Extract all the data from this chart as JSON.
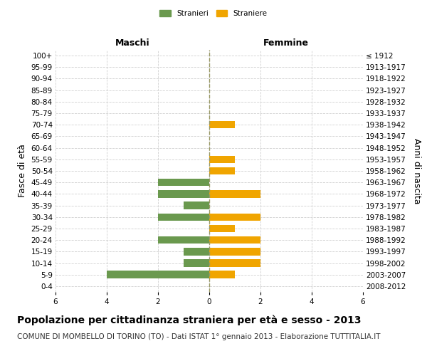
{
  "age_groups": [
    "0-4",
    "5-9",
    "10-14",
    "15-19",
    "20-24",
    "25-29",
    "30-34",
    "35-39",
    "40-44",
    "45-49",
    "50-54",
    "55-59",
    "60-64",
    "65-69",
    "70-74",
    "75-79",
    "80-84",
    "85-89",
    "90-94",
    "95-99",
    "100+"
  ],
  "birth_years": [
    "2008-2012",
    "2003-2007",
    "1998-2002",
    "1993-1997",
    "1988-1992",
    "1983-1987",
    "1978-1982",
    "1973-1977",
    "1968-1972",
    "1963-1967",
    "1958-1962",
    "1953-1957",
    "1948-1952",
    "1943-1947",
    "1938-1942",
    "1933-1937",
    "1928-1932",
    "1923-1927",
    "1918-1922",
    "1913-1917",
    "≤ 1912"
  ],
  "males": [
    0,
    4,
    1,
    1,
    2,
    0,
    2,
    1,
    2,
    2,
    0,
    0,
    0,
    0,
    0,
    0,
    0,
    0,
    0,
    0,
    0
  ],
  "females": [
    0,
    1,
    2,
    2,
    2,
    1,
    2,
    0,
    2,
    0,
    1,
    1,
    0,
    0,
    1,
    0,
    0,
    0,
    0,
    0,
    0
  ],
  "male_color": "#6a994e",
  "female_color": "#f0a500",
  "center_line_color": "#999966",
  "grid_color": "#d0d0d0",
  "background_color": "#ffffff",
  "title": "Popolazione per cittadinanza straniera per età e sesso - 2013",
  "subtitle": "COMUNE DI MOMBELLO DI TORINO (TO) - Dati ISTAT 1° gennaio 2013 - Elaborazione TUTTITALIA.IT",
  "ylabel_left": "Fasce di età",
  "ylabel_right": "Anni di nascita",
  "header_left": "Maschi",
  "header_right": "Femmine",
  "legend_male": "Stranieri",
  "legend_female": "Straniere",
  "xlim": 6,
  "title_fontsize": 10,
  "subtitle_fontsize": 7.5,
  "tick_fontsize": 7.5,
  "label_fontsize": 9
}
